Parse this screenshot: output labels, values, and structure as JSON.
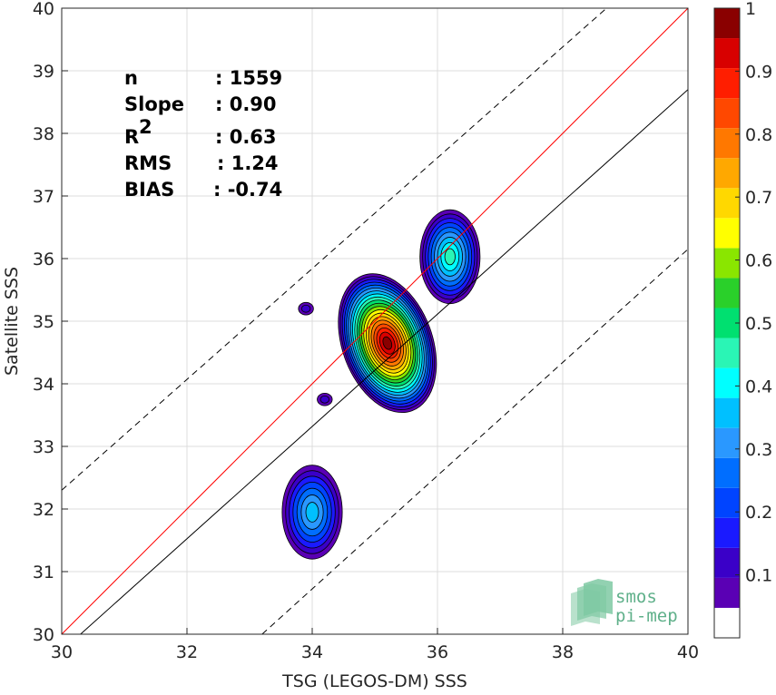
{
  "chart_data": {
    "type": "heatmap",
    "subtype": "density-contour",
    "xlabel": "TSG (LEGOS-DM) SSS",
    "ylabel": "Satellite SSS",
    "xlim": [
      30,
      40
    ],
    "ylim": [
      30,
      40
    ],
    "x_ticks": [
      "30",
      "32",
      "34",
      "36",
      "38",
      "40"
    ],
    "y_ticks": [
      "30",
      "31",
      "32",
      "33",
      "34",
      "35",
      "36",
      "37",
      "38",
      "39",
      "40"
    ],
    "grid": true,
    "stats": [
      {
        "label": "n",
        "value": ": 1559"
      },
      {
        "label": "Slope",
        "value": ": 0.90"
      },
      {
        "label": "R",
        "sup": "2",
        "value": ": 0.63"
      },
      {
        "label": "RMS",
        "value": ": 1.24"
      },
      {
        "label": "BIAS",
        "value": ": -0.74"
      }
    ],
    "lines": [
      {
        "role": "one-to-one",
        "color": "#ff0000",
        "style": "solid",
        "slope": 1,
        "intercept": 0
      },
      {
        "role": "regression",
        "color": "#000000",
        "style": "solid",
        "points": [
          [
            30.3,
            30
          ],
          [
            40,
            38.7
          ]
        ]
      },
      {
        "role": "upper-bound",
        "color": "#000000",
        "style": "dashed",
        "points": [
          [
            30,
            32.3
          ],
          [
            38.7,
            40
          ]
        ]
      },
      {
        "role": "lower-bound",
        "color": "#000000",
        "style": "dashed",
        "points": [
          [
            33.2,
            30
          ],
          [
            40,
            36.15
          ]
        ]
      }
    ],
    "density_peaks": [
      {
        "x": 35.2,
        "y": 34.65,
        "level": 1.0
      },
      {
        "x": 36.2,
        "y": 36.03,
        "level": 0.45
      },
      {
        "x": 34.0,
        "y": 31.95,
        "level": 0.35
      },
      {
        "x": 33.9,
        "y": 35.2,
        "level": 0.1
      },
      {
        "x": 34.2,
        "y": 33.75,
        "level": 0.1
      }
    ],
    "colorbar": {
      "ticks": [
        "0.1",
        "0.2",
        "0.3",
        "0.4",
        "0.5",
        "0.6",
        "0.7",
        "0.8",
        "0.9",
        "1"
      ],
      "range": [
        0,
        1
      ],
      "colors": [
        "#ffffff",
        "#5a00b4",
        "#3a00c8",
        "#1a1aff",
        "#0044ff",
        "#006eff",
        "#2a98ff",
        "#00c0ff",
        "#00ffff",
        "#2af5b5",
        "#00e070",
        "#2ad02a",
        "#8ae600",
        "#ffff00",
        "#ffd800",
        "#ffa800",
        "#ff7800",
        "#ff4800",
        "#ff1e00",
        "#d80000",
        "#8a0000"
      ]
    },
    "logo": {
      "line1": "smos",
      "line2": "pi-mep"
    }
  }
}
